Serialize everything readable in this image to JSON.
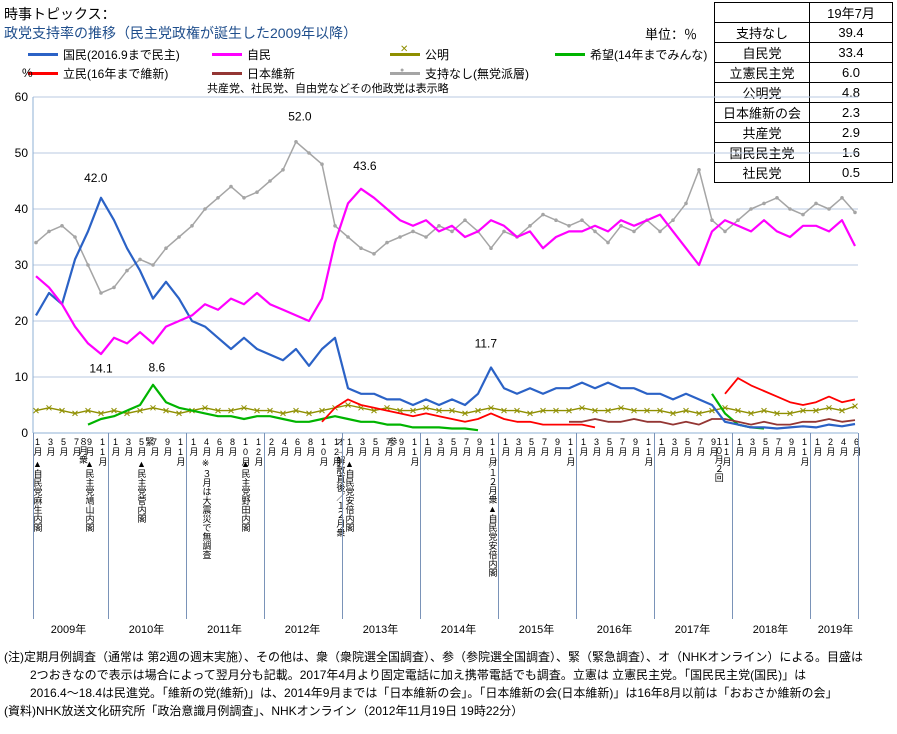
{
  "header": {
    "topic_label": "時事トピックス：",
    "title": "政党支持率の推移（民主党政権が誕生した2009年以降）",
    "unit_label": "単位：％",
    "note": "共産党、社民党、自由党などその他政党は表示略",
    "y_unit": "%"
  },
  "summary_table": {
    "header": "19年7月",
    "rows": [
      {
        "label": "支持なし",
        "value": "39.4"
      },
      {
        "label": "自民党",
        "value": "33.4"
      },
      {
        "label": "立憲民主党",
        "value": "6.0"
      },
      {
        "label": "公明党",
        "value": "4.8"
      },
      {
        "label": "日本維新の会",
        "value": "2.3"
      },
      {
        "label": "共産党",
        "value": "2.9"
      },
      {
        "label": "国民民主党",
        "value": "1.6"
      },
      {
        "label": "社民党",
        "value": "0.5"
      }
    ]
  },
  "legend": {
    "rows": [
      [
        {
          "label": "国民(2016.9まで民主)",
          "color": "#2b62c6",
          "marker": ""
        },
        {
          "label": "自民",
          "color": "#ff00ff",
          "marker": ""
        },
        {
          "label": "公明",
          "color": "#8f8f00",
          "marker": "x"
        },
        {
          "label": "希望(14年までみんな)",
          "color": "#00b400",
          "marker": ""
        }
      ],
      [
        {
          "label": "立民(16年まで維新)",
          "color": "#ff0000",
          "marker": ""
        },
        {
          "label": "日本維新",
          "color": "#943634",
          "marker": ""
        },
        {
          "label": "支持なし(無党派層)",
          "color": "#a5a5a5",
          "marker": "dot"
        }
      ]
    ]
  },
  "chart_data": {
    "type": "line",
    "title": "政党支持率の推移（民主党政権が誕生した2009年以降）",
    "ylabel": "%",
    "ylim": [
      0,
      60
    ],
    "y_ticks": [
      0,
      10,
      20,
      30,
      40,
      50,
      60
    ],
    "grid": true,
    "x_labels": [
      "1月",
      "3月",
      "5月",
      "7月",
      "9月",
      "11月",
      "1月",
      "3月",
      "5月",
      "7月",
      "9月",
      "11月",
      "1月",
      "4月",
      "6月",
      "8月",
      "10月",
      "12月",
      "2月",
      "4月",
      "6月",
      "8月",
      "10月",
      "12月",
      "1月",
      "3月",
      "5月",
      "7月",
      "9月",
      "11月",
      "1月",
      "3月",
      "5月",
      "7月",
      "9月",
      "11月",
      "1月",
      "3月",
      "5月",
      "7月",
      "9月",
      "11月",
      "1月",
      "3月",
      "5月",
      "7月",
      "9月",
      "11月",
      "1月",
      "3月",
      "5月",
      "7月",
      "9月",
      "11月",
      "1月",
      "3月",
      "5月",
      "7月",
      "9月",
      "11月",
      "1月",
      "2月",
      "4月",
      "6月"
    ],
    "years": [
      "2009年",
      "2010年",
      "2011年",
      "2012年",
      "2013年",
      "2014年",
      "2015年",
      "2016年",
      "2017年",
      "2018年",
      "2019年"
    ],
    "series": [
      {
        "name": "支持なし(無党派層)",
        "color": "#a5a5a5",
        "marker": "dot",
        "values": [
          34,
          36,
          37,
          35,
          30,
          25,
          26,
          29,
          31,
          30,
          33,
          35,
          37,
          40,
          42,
          44,
          42,
          43,
          45,
          47,
          52,
          50,
          48,
          37,
          35,
          33,
          32,
          34,
          35,
          36,
          35,
          37,
          36,
          38,
          36,
          33,
          36,
          35,
          37,
          39,
          38,
          37,
          38,
          36,
          34,
          37,
          36,
          38,
          36,
          38,
          41,
          47,
          38,
          36,
          38,
          40,
          41,
          42,
          40,
          39,
          41,
          40,
          42,
          39.4
        ]
      },
      {
        "name": "公明",
        "color": "#8f8f00",
        "marker": "x",
        "values": [
          4,
          4.5,
          4,
          3.5,
          4,
          3.5,
          4,
          3.5,
          4,
          4.5,
          4,
          3.5,
          4,
          4.5,
          4,
          4,
          4.5,
          4,
          4,
          3.5,
          4,
          3.5,
          4,
          4.5,
          5,
          4.5,
          4,
          4.5,
          4,
          4,
          4.5,
          4,
          4,
          3.5,
          4,
          4.5,
          4,
          4,
          3.5,
          4,
          4,
          4,
          4.5,
          4,
          4,
          4.5,
          4,
          4,
          4,
          3.5,
          4,
          3.5,
          4,
          4.5,
          4,
          3.5,
          4,
          3.5,
          3.5,
          4,
          4,
          4.5,
          4,
          4.8
        ]
      },
      {
        "name": "希望(14年までみんな)",
        "color": "#00b400",
        "marker": "",
        "values": [
          null,
          null,
          null,
          null,
          1.5,
          2.5,
          3,
          4,
          5,
          8.6,
          5.5,
          4.5,
          4,
          3.5,
          3,
          3,
          2.5,
          3,
          3,
          2.5,
          2,
          2,
          2.5,
          3,
          2.5,
          2,
          2,
          1.5,
          1.5,
          1,
          1,
          1,
          0.8,
          0.8,
          0.5,
          null,
          null,
          null,
          null,
          null,
          null,
          null,
          null,
          null,
          null,
          null,
          null,
          null,
          null,
          null,
          null,
          null,
          7,
          3.5,
          1.5,
          1,
          0.8,
          null,
          null,
          null,
          null,
          null,
          null,
          null
        ]
      },
      {
        "name": "日本維新",
        "color": "#943634",
        "marker": "",
        "values": [
          null,
          null,
          null,
          null,
          null,
          null,
          null,
          null,
          null,
          null,
          null,
          null,
          null,
          null,
          null,
          null,
          null,
          null,
          null,
          null,
          null,
          null,
          null,
          null,
          null,
          null,
          null,
          null,
          null,
          null,
          null,
          null,
          null,
          null,
          null,
          null,
          null,
          null,
          null,
          null,
          null,
          2,
          2,
          2.5,
          2,
          2,
          2.5,
          2,
          2,
          1.5,
          2,
          1.5,
          2.5,
          2.5,
          2,
          1.5,
          2,
          1.5,
          1.5,
          2,
          2,
          2.5,
          2,
          2.3
        ]
      },
      {
        "name": "立民(16年まで維新)",
        "color": "#ff0000",
        "marker": "",
        "values": [
          null,
          null,
          null,
          null,
          null,
          null,
          null,
          null,
          null,
          null,
          null,
          null,
          null,
          null,
          null,
          null,
          null,
          null,
          null,
          null,
          null,
          null,
          2,
          4.5,
          6,
          5,
          4.5,
          4,
          3.5,
          3,
          3.5,
          3,
          2.5,
          2,
          2.5,
          3.5,
          2.5,
          2,
          2,
          1.5,
          1.5,
          1.5,
          1.5,
          1,
          null,
          null,
          null,
          null,
          null,
          null,
          null,
          null,
          null,
          7,
          9.8,
          8.5,
          7.5,
          6.5,
          5.5,
          5,
          5.5,
          6.5,
          5.5,
          6
        ]
      },
      {
        "name": "国民(2016.9まで民主)",
        "color": "#2b62c6",
        "marker": "",
        "values": [
          21,
          25,
          23,
          31,
          36,
          42,
          38,
          33,
          29,
          24,
          27,
          24,
          20,
          19,
          17,
          15,
          17,
          15,
          14,
          13,
          15,
          12,
          15,
          17,
          8,
          7,
          7,
          6,
          6,
          5,
          6,
          5,
          6,
          5,
          7,
          11.7,
          8,
          7,
          8,
          7,
          8,
          8,
          9,
          8,
          9,
          8,
          8,
          7,
          7,
          6,
          7,
          6,
          5,
          2,
          1.5,
          1,
          1,
          0.8,
          1,
          1.2,
          1,
          1.5,
          1.2,
          1.6
        ]
      },
      {
        "name": "自民",
        "color": "#ff00ff",
        "marker": "",
        "values": [
          28,
          26,
          23,
          19,
          16,
          14.1,
          17,
          16,
          18,
          16,
          19,
          20,
          21,
          23,
          22,
          24,
          23,
          25,
          23,
          22,
          21,
          20,
          24,
          34,
          41,
          43.6,
          42,
          40,
          38,
          37,
          38,
          36,
          37,
          35,
          36,
          38,
          37,
          35,
          36,
          33,
          35,
          36,
          36,
          37,
          36,
          38,
          37,
          38,
          39,
          36,
          33,
          30,
          36,
          38,
          37,
          36,
          38,
          36,
          35,
          37,
          37,
          36,
          38,
          33.4
        ]
      }
    ],
    "point_labels": [
      {
        "text": "42.0",
        "xi": 4.6,
        "v": 44.8
      },
      {
        "text": "14.1",
        "xi": 5.0,
        "v": 10.8
      },
      {
        "text": "8.6",
        "xi": 9.3,
        "v": 11.0
      },
      {
        "text": "52.0",
        "xi": 20.3,
        "v": 55.8
      },
      {
        "text": "43.6",
        "xi": 25.3,
        "v": 47.0
      },
      {
        "text": "11.7",
        "xi": 34.6,
        "v": 15.3
      }
    ],
    "events": [
      {
        "xi": 0,
        "row": 1,
        "text": "▲自民党麻生内閣"
      },
      {
        "xi": 3.5,
        "row": 0,
        "text": "８月衆"
      },
      {
        "xi": 4,
        "row": 1,
        "text": "▲民主党鳩山内閣"
      },
      {
        "xi": 8.6,
        "row": 0,
        "text": "緊"
      },
      {
        "xi": 8,
        "row": 1,
        "text": "▲民主党菅内閣"
      },
      {
        "xi": 13,
        "row": 1,
        "text": "※３月は大震災で無調査"
      },
      {
        "xi": 16,
        "row": 1,
        "text": "▲民主党野田内閣"
      },
      {
        "xi": 23.3,
        "row": 0,
        "text": "オ→解散直後／１２月衆"
      },
      {
        "xi": 24,
        "row": 1,
        "text": "▲自民党安倍内閣"
      },
      {
        "xi": 27.3,
        "row": 0,
        "text": "参"
      },
      {
        "xi": 35,
        "row": 1,
        "text": "／１２月衆▲自民党安倍内閣"
      },
      {
        "xi": 52.4,
        "row": 0,
        "text": "１０月２回"
      }
    ]
  },
  "footer": {
    "lines": [
      "(注)定期月例調査（通常は 第2週の週末実施）、その他は、衆（衆院選全国調査）、参（参院選全国調査）、緊（緊急調査）、オ（NHKオンライン）による。目盛は",
      "2つおきなので表示は場合によって翌月分も記載。2017年4月より固定電話に加え携帯電話でも調査。立憲は 立憲民主党。「国民民主党(国民)」は",
      "2016.4～18.4は民進党。「維新の党(維新)」は、2014年9月までは「日本維新の会」。「日本維新の会(日本維新)」は16年8月以前は「おおさか維新の会」",
      "(資料)NHK放送文化研究所「政治意識月例調査」、NHKオンライン（2012年11月19日 19時22分）"
    ]
  },
  "colors": {
    "title": "#1f4e8c",
    "gridline": "#b9c9e2",
    "axis": "#8fb0d4",
    "year_separator": "#7a93b8"
  }
}
